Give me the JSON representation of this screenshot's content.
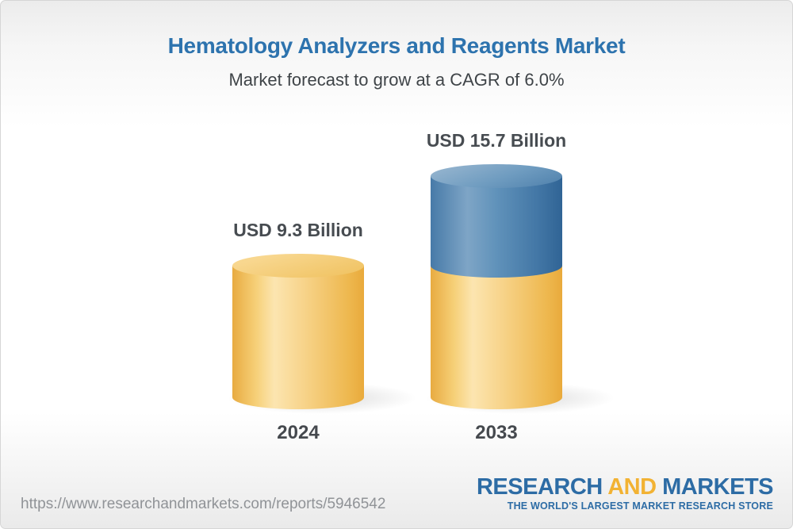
{
  "header": {
    "title": "Hematology Analyzers and Reagents Market",
    "subtitle": "Market forecast to grow at a CAGR of 6.0%"
  },
  "chart_data": {
    "type": "bar",
    "variant": "3d-cylinder",
    "categories": [
      "2024",
      "2033"
    ],
    "values": [
      9.3,
      15.7
    ],
    "unit": "USD Billion",
    "value_labels": [
      "USD 9.3 Billion",
      "USD 15.7 Billion"
    ],
    "title": "Hematology Analyzers and Reagents Market",
    "subtitle": "Market forecast to grow at a CAGR of 6.0%",
    "cagr_percent": 6.0,
    "ylim": [
      0,
      16
    ],
    "grid": false,
    "legend": "none",
    "colors": {
      "base_segment": "#f0c469",
      "growth_segment": "#4d80ad",
      "title_text": "#2d73ae",
      "label_text": "#474c51"
    }
  },
  "footer": {
    "url": "https://www.researchandmarkets.com/reports/5946542",
    "logo": {
      "part1": "RESEARCH",
      "part2": "AND",
      "part3": "MARKETS",
      "tagline": "THE WORLD'S LARGEST MARKET RESEARCH STORE"
    }
  }
}
